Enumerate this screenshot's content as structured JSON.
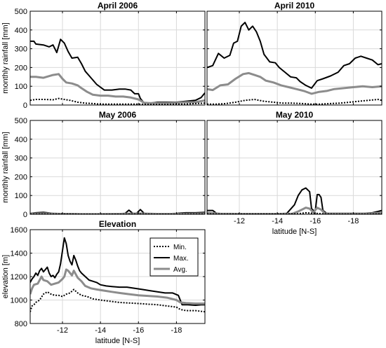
{
  "chart_data": [
    {
      "type": "line",
      "title": "April 2006",
      "ylabel": "monthly rainfall [mm]",
      "xlabel": "",
      "xlim": [
        -10.3,
        -19.5
      ],
      "ylim": [
        0,
        500
      ],
      "yticks": [
        0,
        100,
        200,
        300,
        400,
        500
      ],
      "show_yticklabels": true,
      "show_xticklabels": false,
      "grid": true,
      "series": [
        {
          "key": "max",
          "x": [
            -10.3,
            -10.5,
            -10.6,
            -11.0,
            -11.3,
            -11.5,
            -11.7,
            -11.9,
            -12.1,
            -12.3,
            -12.5,
            -12.8,
            -13.0,
            -13.2,
            -13.5,
            -13.8,
            -14.2,
            -14.6,
            -15.0,
            -15.3,
            -15.6,
            -15.8,
            -16.0,
            -16.1,
            -16.3,
            -16.6,
            -17.0,
            -17.5,
            -18.0,
            -18.5,
            -19.0,
            -19.3,
            -19.5
          ],
          "y": [
            340,
            340,
            325,
            320,
            310,
            320,
            280,
            350,
            330,
            285,
            250,
            255,
            220,
            180,
            145,
            110,
            80,
            80,
            85,
            85,
            80,
            60,
            60,
            35,
            10,
            10,
            15,
            15,
            15,
            20,
            25,
            40,
            65
          ]
        },
        {
          "key": "avg",
          "x": [
            -10.3,
            -10.6,
            -11.0,
            -11.5,
            -11.8,
            -12.0,
            -12.2,
            -12.5,
            -12.8,
            -13.0,
            -13.3,
            -13.6,
            -14.0,
            -14.4,
            -14.8,
            -15.2,
            -15.6,
            -16.0,
            -16.3,
            -16.6,
            -17.0,
            -17.5,
            -18.0,
            -18.5,
            -19.0,
            -19.5
          ],
          "y": [
            150,
            150,
            145,
            160,
            165,
            140,
            120,
            115,
            105,
            90,
            70,
            55,
            50,
            50,
            45,
            45,
            40,
            30,
            12,
            10,
            10,
            10,
            12,
            15,
            15,
            25
          ]
        },
        {
          "key": "min",
          "x": [
            -10.3,
            -10.6,
            -11.0,
            -11.5,
            -11.8,
            -12.1,
            -12.4,
            -12.8,
            -13.2,
            -13.6,
            -14.0,
            -14.5,
            -15.0,
            -15.5,
            -16.0,
            -16.5,
            -17.0,
            -17.5,
            -18.0,
            -18.5,
            -19.0,
            -19.5
          ],
          "y": [
            25,
            30,
            30,
            28,
            35,
            30,
            25,
            15,
            10,
            8,
            5,
            5,
            5,
            5,
            5,
            3,
            3,
            3,
            5,
            5,
            8,
            10
          ]
        }
      ]
    },
    {
      "type": "line",
      "title": "April 2010",
      "ylabel": "",
      "xlabel": "",
      "xlim": [
        -10.3,
        -19.5
      ],
      "ylim": [
        0,
        500
      ],
      "yticks": [
        0,
        100,
        200,
        300,
        400,
        500
      ],
      "show_yticklabels": false,
      "show_xticklabels": false,
      "grid": true,
      "series": [
        {
          "key": "max",
          "x": [
            -10.3,
            -10.6,
            -10.9,
            -11.2,
            -11.5,
            -11.7,
            -11.9,
            -12.1,
            -12.3,
            -12.5,
            -12.7,
            -12.9,
            -13.1,
            -13.3,
            -13.6,
            -13.9,
            -14.1,
            -14.4,
            -14.7,
            -15.0,
            -15.2,
            -15.5,
            -15.8,
            -16.1,
            -16.4,
            -16.8,
            -17.2,
            -17.5,
            -17.8,
            -18.1,
            -18.4,
            -18.7,
            -19.0,
            -19.3,
            -19.5
          ],
          "y": [
            200,
            210,
            275,
            250,
            265,
            330,
            340,
            420,
            440,
            400,
            420,
            390,
            340,
            270,
            230,
            225,
            200,
            175,
            150,
            145,
            125,
            105,
            90,
            130,
            140,
            155,
            175,
            210,
            220,
            250,
            260,
            250,
            240,
            215,
            220
          ]
        },
        {
          "key": "avg",
          "x": [
            -10.3,
            -10.6,
            -11.0,
            -11.4,
            -11.8,
            -12.2,
            -12.5,
            -12.8,
            -13.1,
            -13.4,
            -13.8,
            -14.2,
            -14.6,
            -15.0,
            -15.4,
            -15.8,
            -16.2,
            -16.6,
            -17.0,
            -17.5,
            -18.0,
            -18.5,
            -19.0,
            -19.5
          ],
          "y": [
            85,
            80,
            105,
            110,
            140,
            165,
            170,
            160,
            150,
            130,
            120,
            105,
            95,
            85,
            75,
            60,
            70,
            75,
            85,
            90,
            95,
            100,
            95,
            100
          ]
        },
        {
          "key": "min",
          "x": [
            -10.3,
            -10.8,
            -11.3,
            -11.8,
            -12.3,
            -12.8,
            -13.3,
            -13.8,
            -14.3,
            -14.8,
            -15.3,
            -15.8,
            -16.3,
            -16.8,
            -17.3,
            -17.8,
            -18.3,
            -18.8,
            -19.3,
            -19.5
          ],
          "y": [
            5,
            5,
            8,
            15,
            25,
            30,
            20,
            15,
            10,
            10,
            8,
            5,
            5,
            8,
            10,
            15,
            20,
            25,
            30,
            25
          ]
        }
      ]
    },
    {
      "type": "line",
      "title": "May 2006",
      "ylabel": "monthly rainfall [mm]",
      "xlabel": "",
      "xlim": [
        -10.3,
        -19.5
      ],
      "ylim": [
        0,
        500
      ],
      "yticks": [
        0,
        100,
        200,
        300,
        400,
        500
      ],
      "show_yticklabels": true,
      "show_xticklabels": false,
      "grid": true,
      "series": [
        {
          "key": "max",
          "x": [
            -10.3,
            -10.6,
            -11.0,
            -11.5,
            -12.0,
            -12.5,
            -13.0,
            -13.5,
            -14.0,
            -14.5,
            -15.0,
            -15.3,
            -15.5,
            -15.7,
            -15.9,
            -16.1,
            -16.3,
            -16.6,
            -17.0,
            -17.5,
            -18.0,
            -18.5,
            -19.0,
            -19.5
          ],
          "y": [
            5,
            8,
            10,
            5,
            3,
            3,
            2,
            2,
            2,
            2,
            3,
            5,
            22,
            5,
            5,
            25,
            5,
            3,
            3,
            3,
            5,
            8,
            8,
            10
          ]
        },
        {
          "key": "avg",
          "x": [
            -10.3,
            -11.0,
            -12.0,
            -13.0,
            -14.0,
            -15.0,
            -16.0,
            -17.0,
            -18.0,
            -19.0,
            -19.5
          ],
          "y": [
            3,
            4,
            2,
            1,
            1,
            2,
            4,
            2,
            2,
            3,
            4
          ]
        },
        {
          "key": "min",
          "x": [
            -10.3,
            -11.0,
            -12.0,
            -13.0,
            -14.0,
            -15.0,
            -16.0,
            -17.0,
            -18.0,
            -19.0,
            -19.5
          ],
          "y": [
            1,
            1,
            1,
            0,
            0,
            0,
            1,
            0,
            0,
            1,
            1
          ]
        }
      ]
    },
    {
      "type": "line",
      "title": "May 2010",
      "ylabel": "",
      "xlabel": "latitude [N-S]",
      "xlim": [
        -10.3,
        -19.5
      ],
      "ylim": [
        0,
        500
      ],
      "yticks": [
        0,
        100,
        200,
        300,
        400,
        500
      ],
      "show_yticklabels": false,
      "show_xticklabels": true,
      "grid": true,
      "series": [
        {
          "key": "max",
          "x": [
            -10.3,
            -10.6,
            -10.8,
            -11.0,
            -11.5,
            -12.0,
            -12.5,
            -13.0,
            -13.5,
            -14.0,
            -14.5,
            -14.9,
            -15.1,
            -15.3,
            -15.5,
            -15.7,
            -15.8,
            -15.9,
            -16.0,
            -16.1,
            -16.2,
            -16.3,
            -16.4,
            -16.6,
            -17.0,
            -17.5,
            -18.0,
            -18.5,
            -19.0,
            -19.3,
            -19.5
          ],
          "y": [
            20,
            20,
            5,
            3,
            3,
            3,
            3,
            3,
            3,
            3,
            5,
            50,
            100,
            130,
            140,
            120,
            30,
            20,
            20,
            105,
            105,
            90,
            20,
            5,
            5,
            5,
            5,
            5,
            8,
            15,
            20
          ]
        },
        {
          "key": "avg",
          "x": [
            -10.3,
            -11.0,
            -12.0,
            -13.0,
            -14.0,
            -14.8,
            -15.1,
            -15.3,
            -15.5,
            -15.7,
            -15.9,
            -16.1,
            -16.3,
            -16.5,
            -17.0,
            -18.0,
            -19.0,
            -19.5
          ],
          "y": [
            8,
            3,
            2,
            2,
            2,
            3,
            15,
            25,
            35,
            30,
            10,
            35,
            25,
            5,
            3,
            3,
            5,
            8
          ]
        },
        {
          "key": "min",
          "x": [
            -10.3,
            -11.0,
            -12.0,
            -13.0,
            -14.0,
            -15.0,
            -15.5,
            -16.0,
            -16.5,
            -17.0,
            -18.0,
            -19.0,
            -19.5
          ],
          "y": [
            2,
            1,
            1,
            1,
            1,
            2,
            8,
            5,
            2,
            1,
            1,
            1,
            2
          ]
        }
      ]
    },
    {
      "type": "line",
      "title": "Elevation",
      "ylabel": "elevation [m]",
      "xlabel": "latitude [N-S]",
      "xlim": [
        -10.3,
        -19.5
      ],
      "ylim": [
        800,
        1600
      ],
      "yticks": [
        800,
        1000,
        1200,
        1400,
        1600
      ],
      "show_yticklabels": true,
      "show_xticklabels": true,
      "grid": true,
      "legend": [
        "Min.",
        "Max.",
        "Avg."
      ],
      "legend_position": "top-right",
      "series": [
        {
          "key": "max",
          "name": "Max.",
          "x": [
            -10.3,
            -10.4,
            -10.5,
            -10.6,
            -10.7,
            -10.8,
            -10.9,
            -11.0,
            -11.1,
            -11.2,
            -11.3,
            -11.4,
            -11.5,
            -11.6,
            -11.7,
            -11.8,
            -11.9,
            -12.0,
            -12.1,
            -12.2,
            -12.3,
            -12.4,
            -12.5,
            -12.6,
            -12.7,
            -12.8,
            -12.9,
            -13.0,
            -13.2,
            -13.4,
            -13.6,
            -13.8,
            -14.0,
            -14.3,
            -14.6,
            -15.0,
            -15.4,
            -15.8,
            -16.2,
            -16.6,
            -17.0,
            -17.4,
            -17.8,
            -18.1,
            -18.3,
            -18.6,
            -19.0,
            -19.3,
            -19.5
          ],
          "y": [
            1150,
            1180,
            1200,
            1230,
            1210,
            1250,
            1270,
            1240,
            1260,
            1280,
            1230,
            1200,
            1210,
            1190,
            1220,
            1240,
            1310,
            1420,
            1530,
            1480,
            1380,
            1330,
            1300,
            1380,
            1340,
            1290,
            1250,
            1230,
            1200,
            1170,
            1160,
            1150,
            1130,
            1120,
            1115,
            1110,
            1110,
            1100,
            1090,
            1080,
            1070,
            1060,
            1060,
            1040,
            960,
            960,
            955,
            960,
            960
          ]
        },
        {
          "key": "avg",
          "name": "Avg.",
          "x": [
            -10.3,
            -10.4,
            -10.5,
            -10.7,
            -10.9,
            -11.0,
            -11.2,
            -11.4,
            -11.6,
            -11.8,
            -12.0,
            -12.1,
            -12.2,
            -12.3,
            -12.5,
            -12.6,
            -12.8,
            -13.0,
            -13.2,
            -13.5,
            -13.8,
            -14.2,
            -14.6,
            -15.0,
            -15.5,
            -16.0,
            -16.5,
            -17.0,
            -17.5,
            -18.0,
            -18.2,
            -18.5,
            -19.0,
            -19.5
          ],
          "y": [
            1050,
            1100,
            1130,
            1140,
            1200,
            1170,
            1160,
            1130,
            1140,
            1150,
            1180,
            1200,
            1260,
            1250,
            1210,
            1250,
            1190,
            1160,
            1120,
            1100,
            1090,
            1080,
            1070,
            1060,
            1050,
            1040,
            1035,
            1030,
            1020,
            1000,
            980,
            975,
            970,
            970
          ]
        },
        {
          "key": "min",
          "name": "Min.",
          "x": [
            -10.3,
            -10.4,
            -10.5,
            -10.6,
            -10.8,
            -11.0,
            -11.2,
            -11.4,
            -11.6,
            -11.8,
            -12.0,
            -12.2,
            -12.4,
            -12.6,
            -12.8,
            -13.0,
            -13.3,
            -13.6,
            -14.0,
            -14.5,
            -15.0,
            -15.5,
            -16.0,
            -16.5,
            -17.0,
            -17.5,
            -18.0,
            -18.2,
            -18.5,
            -19.0,
            -19.5
          ],
          "y": [
            900,
            950,
            960,
            980,
            1000,
            1050,
            1070,
            1050,
            1040,
            1040,
            1030,
            1050,
            1060,
            1090,
            1060,
            1040,
            1030,
            1010,
            1000,
            990,
            980,
            975,
            970,
            965,
            960,
            950,
            940,
            920,
            910,
            910,
            900
          ]
        }
      ]
    }
  ],
  "xticks": [
    -12,
    -14,
    -16,
    -18
  ],
  "xtick_labels": [
    "-12",
    "-14",
    "-16",
    "-18"
  ],
  "style": {
    "max": {
      "color": "#000000",
      "width": 2,
      "dash": ""
    },
    "avg": {
      "color": "#8c8c8c",
      "width": 3,
      "dash": ""
    },
    "min": {
      "color": "#000000",
      "width": 2,
      "dash": "2,2"
    }
  }
}
